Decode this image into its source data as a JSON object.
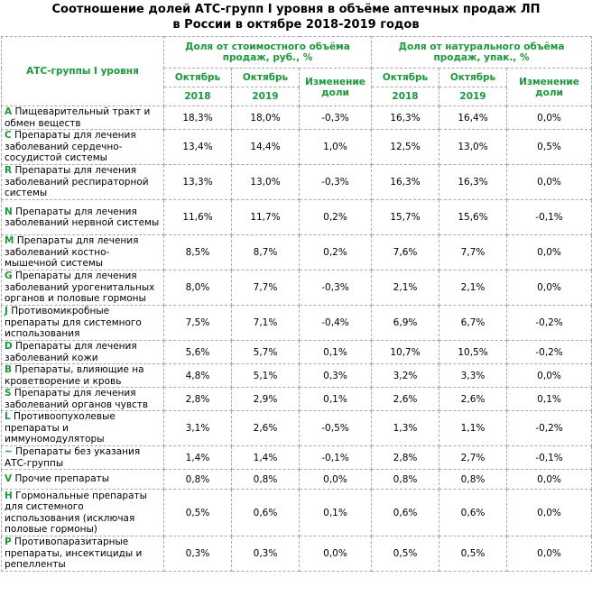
{
  "title": {
    "line1": "Соотношение долей АТС-групп I уровня в объёме аптечных продаж ЛП",
    "line2": "в России в октябре 2018-2019 годов"
  },
  "header": {
    "atc_col": "АТС-группы I уровня",
    "value_group": "Доля от стоимостного объёма продаж, руб., %",
    "volume_group": "Доля от натурального объёма продаж, упак., %",
    "month": "Октябрь",
    "year1": "2018",
    "year2": "2019",
    "change": "Изменение доли"
  },
  "rows": [
    {
      "code": "A",
      "name": "Пищеварительный тракт и обмен веществ",
      "v18": "18,3%",
      "v19": "18,0%",
      "vch": "-0,3%",
      "u18": "16,3%",
      "u19": "16,4%",
      "uch": "0,0%"
    },
    {
      "code": "C",
      "name": "Препараты для лечения заболеваний сердечно-сосудистой системы",
      "v18": "13,4%",
      "v19": "14,4%",
      "vch": "1,0%",
      "u18": "12,5%",
      "u19": "13,0%",
      "uch": "0,5%"
    },
    {
      "code": "R",
      "name": "Препараты для лечения заболеваний респираторной системы",
      "v18": "13,3%",
      "v19": "13,0%",
      "vch": "-0,3%",
      "u18": "16,3%",
      "u19": "16,3%",
      "uch": "0,0%"
    },
    {
      "code": "N",
      "name": "Препараты для лечения заболеваний нервной системы",
      "v18": "11,6%",
      "v19": "11,7%",
      "vch": "0,2%",
      "u18": "15,7%",
      "u19": "15,6%",
      "uch": "-0,1%"
    },
    {
      "code": "M",
      "name": "Препараты для лечения заболеваний костно-мышечной системы",
      "v18": "8,5%",
      "v19": "8,7%",
      "vch": "0,2%",
      "u18": "7,6%",
      "u19": "7,7%",
      "uch": "0,0%"
    },
    {
      "code": "G",
      "name": "Препараты для лечения заболеваний урогенитальных органов и половые гормоны",
      "v18": "8,0%",
      "v19": "7,7%",
      "vch": "-0,3%",
      "u18": "2,1%",
      "u19": "2,1%",
      "uch": "0,0%"
    },
    {
      "code": "J",
      "name": "Противомикробные препараты для системного использования",
      "v18": "7,5%",
      "v19": "7,1%",
      "vch": "-0,4%",
      "u18": "6,9%",
      "u19": "6,7%",
      "uch": "-0,2%"
    },
    {
      "code": "D",
      "name": "Препараты для лечения заболеваний кожи",
      "v18": "5,6%",
      "v19": "5,7%",
      "vch": "0,1%",
      "u18": "10,7%",
      "u19": "10,5%",
      "uch": "-0,2%"
    },
    {
      "code": "B",
      "name": "Препараты, влияющие на кроветворение и кровь",
      "v18": "4,8%",
      "v19": "5,1%",
      "vch": "0,3%",
      "u18": "3,2%",
      "u19": "3,3%",
      "uch": "0,0%"
    },
    {
      "code": "S",
      "name": "Препараты для лечения заболеваний органов чувств",
      "v18": "2,8%",
      "v19": "2,9%",
      "vch": "0,1%",
      "u18": "2,6%",
      "u19": "2,6%",
      "uch": "0,1%"
    },
    {
      "code": "L",
      "name": "Противоопухолевые препараты и иммуномодуляторы",
      "v18": "3,1%",
      "v19": "2,6%",
      "vch": "-0,5%",
      "u18": "1,3%",
      "u19": "1,1%",
      "uch": "-0,2%"
    },
    {
      "code": "~",
      "name": "Препараты без указания АТС-группы",
      "v18": "1,4%",
      "v19": "1,4%",
      "vch": "-0,1%",
      "u18": "2,8%",
      "u19": "2,7%",
      "uch": "-0,1%"
    },
    {
      "code": "V",
      "name": "Прочие препараты",
      "v18": "0,8%",
      "v19": "0,8%",
      "vch": "0,0%",
      "u18": "0,8%",
      "u19": "0,8%",
      "uch": "0,0%"
    },
    {
      "code": "H",
      "name": "Гормональные препараты для системного использования (исключая половые гормоны)",
      "v18": "0,5%",
      "v19": "0,6%",
      "vch": "0,1%",
      "u18": "0,6%",
      "u19": "0,6%",
      "uch": "0,0%"
    },
    {
      "code": "P",
      "name": "Противопаразитарные препараты, инсектициды и репелленты",
      "v18": "0,3%",
      "v19": "0,3%",
      "vch": "0,0%",
      "u18": "0,5%",
      "u19": "0,5%",
      "uch": "0,0%"
    }
  ]
}
